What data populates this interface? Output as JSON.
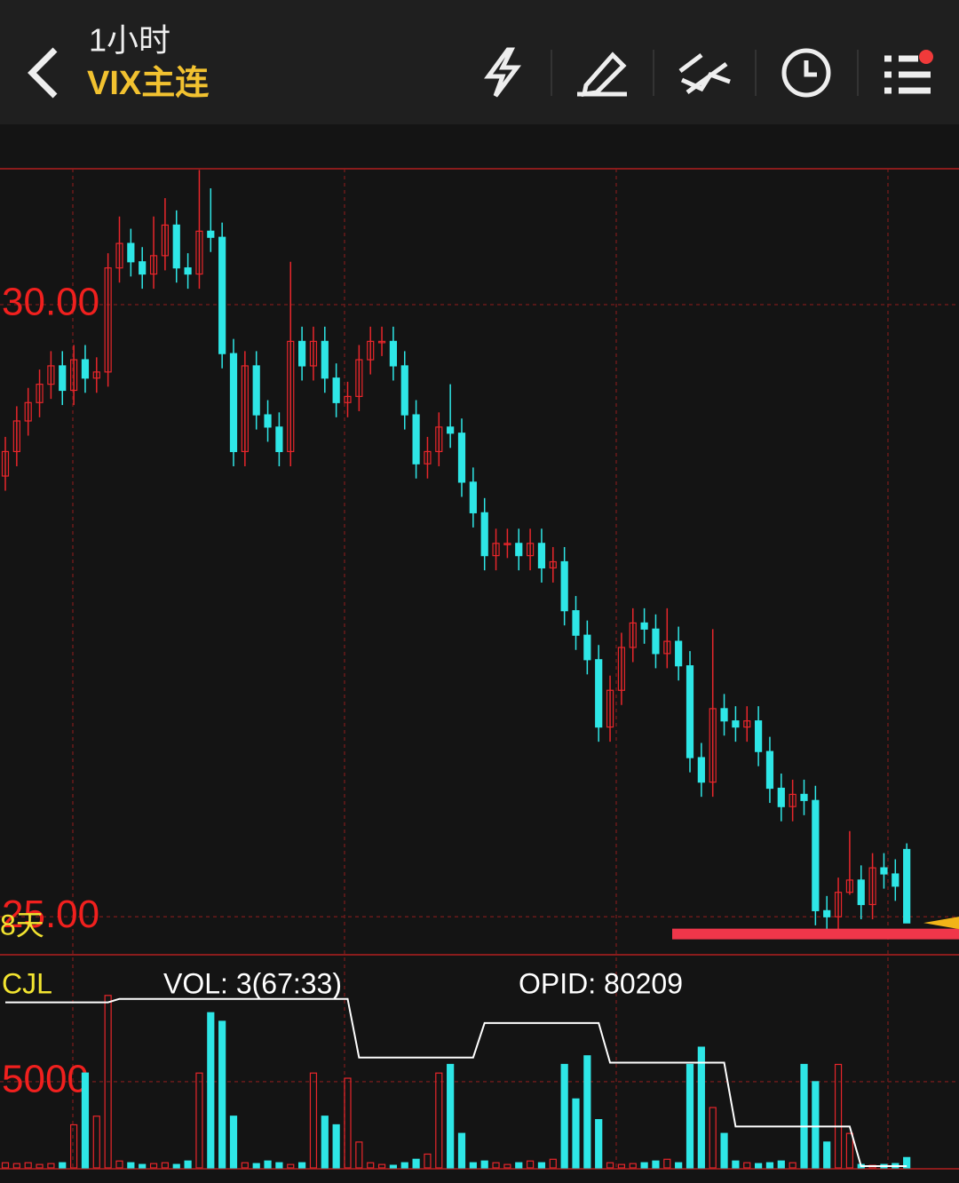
{
  "header": {
    "interval": "1小时",
    "symbol": "VIX主连"
  },
  "indicator": {
    "name": "CJL",
    "vol": "VOL: 3(67:33)",
    "opid": "OPID: 80209"
  },
  "chart_data": [
    {
      "type": "candlestick",
      "annotation": "8天",
      "up_color": "#e8262b",
      "down_color": "#2ee6e6",
      "hline": 24.86,
      "hline_color": "#f0364a",
      "ylim": [
        24.69,
        31.11
      ],
      "yticks": [
        {
          "value": 25,
          "label": "25.00"
        },
        {
          "value": 30,
          "label": "30.00"
        }
      ],
      "open": [
        28.6,
        28.8,
        29.05,
        29.2,
        29.35,
        29.5,
        29.3,
        29.55,
        29.4,
        29.45,
        30.3,
        30.5,
        30.35,
        30.25,
        30.4,
        30.65,
        30.3,
        30.25,
        30.6,
        30.55,
        29.6,
        28.8,
        29.5,
        29.1,
        29.0,
        28.8,
        29.7,
        29.5,
        29.7,
        29.4,
        29.2,
        29.25,
        29.55,
        29.7,
        29.7,
        29.5,
        29.1,
        28.7,
        28.8,
        29.0,
        28.95,
        28.55,
        28.3,
        27.95,
        28.05,
        28.05,
        27.95,
        28.05,
        27.85,
        27.9,
        27.5,
        27.3,
        27.1,
        26.55,
        26.85,
        27.2,
        27.4,
        27.35,
        27.15,
        27.25,
        27.05,
        26.3,
        26.1,
        26.7,
        26.6,
        26.55,
        26.6,
        26.35,
        26.05,
        25.9,
        26.0,
        25.95,
        25.05,
        25.0,
        25.2,
        25.3,
        25.1,
        25.4,
        25.35,
        25.55
      ],
      "high": [
        28.92,
        29.17,
        29.32,
        29.47,
        29.62,
        29.62,
        29.67,
        29.67,
        29.57,
        30.42,
        30.72,
        30.62,
        30.47,
        30.72,
        30.87,
        30.77,
        30.42,
        31.1,
        30.95,
        30.67,
        29.72,
        29.62,
        29.62,
        29.22,
        29.12,
        30.35,
        29.82,
        29.82,
        29.82,
        29.52,
        29.37,
        29.67,
        29.82,
        29.82,
        29.82,
        29.62,
        29.22,
        28.92,
        29.12,
        29.35,
        29.07,
        28.67,
        28.42,
        28.17,
        28.17,
        28.17,
        28.17,
        28.17,
        28.02,
        28.02,
        27.62,
        27.42,
        27.22,
        26.97,
        27.32,
        27.52,
        27.52,
        27.47,
        27.52,
        27.37,
        27.17,
        26.42,
        27.35,
        26.82,
        26.72,
        26.72,
        26.72,
        26.47,
        26.17,
        26.12,
        26.12,
        26.07,
        25.17,
        25.32,
        25.7,
        25.42,
        25.52,
        25.52,
        25.47,
        25.6
      ],
      "low": [
        28.48,
        28.68,
        28.93,
        29.08,
        29.23,
        29.18,
        29.18,
        29.28,
        29.28,
        29.33,
        30.18,
        30.23,
        30.13,
        30.13,
        30.28,
        30.18,
        30.13,
        30.13,
        30.43,
        29.48,
        28.68,
        28.68,
        28.98,
        28.88,
        28.68,
        28.68,
        29.38,
        29.38,
        29.28,
        29.08,
        29.08,
        29.13,
        29.43,
        29.58,
        29.38,
        28.98,
        28.58,
        28.58,
        28.68,
        28.83,
        28.43,
        28.18,
        27.83,
        27.83,
        27.93,
        27.83,
        27.83,
        27.73,
        27.73,
        27.38,
        27.18,
        26.98,
        26.43,
        26.43,
        26.73,
        27.08,
        27.23,
        27.03,
        27.03,
        26.93,
        26.18,
        25.98,
        25.98,
        26.48,
        26.43,
        26.43,
        26.23,
        25.93,
        25.78,
        25.78,
        25.83,
        24.93,
        24.88,
        24.88,
        25.18,
        24.98,
        24.98,
        25.23,
        25.13,
        24.95
      ],
      "close": [
        28.8,
        29.05,
        29.2,
        29.35,
        29.5,
        29.3,
        29.55,
        29.4,
        29.45,
        30.3,
        30.5,
        30.35,
        30.25,
        30.4,
        30.65,
        30.3,
        30.25,
        30.6,
        30.55,
        29.6,
        28.8,
        29.5,
        29.1,
        29.0,
        28.8,
        29.7,
        29.5,
        29.7,
        29.4,
        29.2,
        29.25,
        29.55,
        29.7,
        29.7,
        29.5,
        29.1,
        28.7,
        28.8,
        29.0,
        28.95,
        28.55,
        28.3,
        27.95,
        28.05,
        28.05,
        27.95,
        28.05,
        27.85,
        27.9,
        27.5,
        27.3,
        27.1,
        26.55,
        26.85,
        27.2,
        27.4,
        27.35,
        27.15,
        27.25,
        27.05,
        26.3,
        26.1,
        26.7,
        26.6,
        26.55,
        26.6,
        26.35,
        26.05,
        25.9,
        26.0,
        25.95,
        25.05,
        25.0,
        25.2,
        25.3,
        25.1,
        25.4,
        25.35,
        25.25,
        24.95
      ]
    },
    {
      "type": "bar",
      "ylim": [
        0,
        12360
      ],
      "yticks": [
        5000
      ],
      "line_color": "#ffffff",
      "values": [
        300,
        250,
        300,
        200,
        250,
        300,
        2500,
        5500,
        3000,
        10000,
        400,
        300,
        200,
        250,
        300,
        200,
        400,
        5500,
        9000,
        8500,
        3000,
        300,
        250,
        400,
        300,
        200,
        300,
        5500,
        3000,
        2500,
        5200,
        1500,
        300,
        200,
        150,
        300,
        500,
        800,
        5500,
        6000,
        2000,
        300,
        400,
        300,
        200,
        300,
        400,
        300,
        500,
        6000,
        4000,
        6500,
        2800,
        300,
        200,
        250,
        300,
        400,
        500,
        300,
        6000,
        7000,
        3500,
        2000,
        400,
        300,
        250,
        300,
        400,
        300,
        6000,
        5000,
        1500,
        6000,
        2000,
        200,
        150,
        200,
        250,
        600
      ],
      "line": [
        9600,
        9600,
        9600,
        9600,
        9600,
        9600,
        9600,
        9600,
        9600,
        9600,
        9800,
        9800,
        9800,
        9800,
        9800,
        9800,
        9800,
        9800,
        9800,
        9800,
        9800,
        9800,
        9800,
        9800,
        9800,
        9800,
        9800,
        9800,
        9800,
        9800,
        9800,
        6400,
        6400,
        6400,
        6400,
        6400,
        6400,
        6400,
        6400,
        6400,
        6400,
        6400,
        8400,
        8400,
        8400,
        8400,
        8400,
        8400,
        8400,
        8400,
        8400,
        8400,
        8400,
        6100,
        6100,
        6100,
        6100,
        6100,
        6100,
        6100,
        6100,
        6100,
        6100,
        6100,
        2400,
        2400,
        2400,
        2400,
        2400,
        2400,
        2400,
        2400,
        2400,
        2400,
        2400,
        100,
        100,
        100,
        100,
        100
      ]
    }
  ]
}
